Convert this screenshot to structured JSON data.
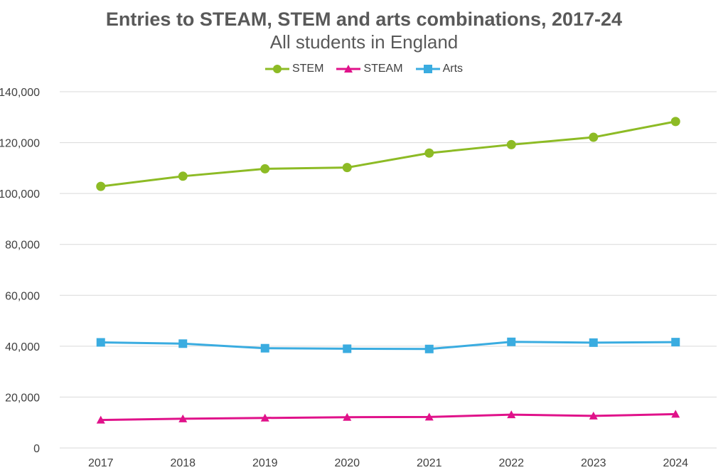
{
  "chart_data": {
    "type": "line",
    "title": "Entries to STEAM, STEM and arts combinations, 2017-24",
    "subtitle": "All students in England",
    "categories": [
      "2017",
      "2018",
      "2019",
      "2020",
      "2021",
      "2022",
      "2023",
      "2024"
    ],
    "ylim": [
      0,
      140000
    ],
    "yticks": [
      0,
      20000,
      40000,
      60000,
      80000,
      100000,
      120000,
      140000
    ],
    "ytick_labels": [
      "0",
      "20,000",
      "40,000",
      "60,000",
      "80,000",
      "100,000",
      "120,000",
      "140,000"
    ],
    "grid": true,
    "legend_position": "top-center",
    "series": [
      {
        "name": "STEM",
        "color": "#8dbb25",
        "marker": "circle",
        "values": [
          102800,
          106800,
          109700,
          110200,
          115900,
          119200,
          122100,
          128300
        ]
      },
      {
        "name": "STEAM",
        "color": "#e0128a",
        "marker": "triangle",
        "values": [
          11000,
          11500,
          11800,
          12100,
          12200,
          13100,
          12600,
          13300
        ]
      },
      {
        "name": "Arts",
        "color": "#3aace0",
        "marker": "square",
        "values": [
          41500,
          41000,
          39200,
          39000,
          38900,
          41700,
          41400,
          41600
        ]
      }
    ]
  }
}
